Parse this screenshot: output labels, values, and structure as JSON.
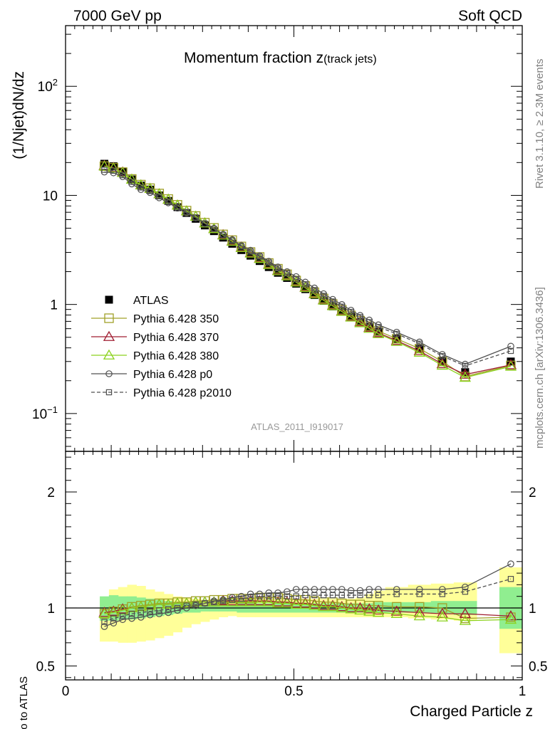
{
  "header": {
    "left": "7000 GeV pp",
    "right": "Soft QCD"
  },
  "side_labels": {
    "rivet": "Rivet 3.1.10, ≥ 2.3M events",
    "mcplots": "mcplots.cern.ch [arXiv:1306.3436]"
  },
  "chart_data": {
    "type": "scatter",
    "title_main": "Momentum fraction z",
    "title_sub": "(track jets)",
    "analysis_label": "ATLAS_2011_I919017",
    "xlabel": "Charged Particle z",
    "ylabel": "(1/Njet)dN/dz",
    "ratio_ylabel": "Ratio to ATLAS",
    "xlim": [
      0,
      1
    ],
    "ylim": [
      0.045,
      360
    ],
    "yscale": "log",
    "ratio_ylim": [
      0.38,
      2.35
    ],
    "x_ticks": [
      {
        "value": 0,
        "label": "0"
      },
      {
        "value": 0.5,
        "label": "0.5"
      },
      {
        "value": 1,
        "label": "1"
      }
    ],
    "y_ticks": [
      {
        "value": 0.1,
        "base": "10",
        "exp": "−1"
      },
      {
        "value": 1,
        "base": "1",
        "exp": ""
      },
      {
        "value": 10,
        "base": "10",
        "exp": ""
      },
      {
        "value": 100,
        "base": "10",
        "exp": "2"
      }
    ],
    "ratio_ticks": [
      {
        "value": 0.5,
        "label": "0.5"
      },
      {
        "value": 1,
        "label": "1"
      },
      {
        "value": 2,
        "label": "2"
      }
    ],
    "legend_position": "lower-left",
    "x": [
      0.085,
      0.105,
      0.125,
      0.145,
      0.165,
      0.185,
      0.205,
      0.225,
      0.245,
      0.265,
      0.285,
      0.305,
      0.325,
      0.345,
      0.365,
      0.385,
      0.405,
      0.425,
      0.445,
      0.465,
      0.485,
      0.505,
      0.525,
      0.545,
      0.565,
      0.585,
      0.605,
      0.625,
      0.645,
      0.665,
      0.685,
      0.725,
      0.775,
      0.825,
      0.875,
      0.975
    ],
    "data": {
      "name": "ATLAS",
      "color": "#000000",
      "values": [
        19.5,
        18.5,
        16.5,
        14.0,
        12.3,
        11.3,
        10.0,
        8.9,
        7.8,
        6.9,
        6.1,
        5.3,
        4.7,
        4.1,
        3.6,
        3.15,
        2.8,
        2.5,
        2.2,
        1.95,
        1.75,
        1.55,
        1.38,
        1.22,
        1.08,
        0.96,
        0.86,
        0.77,
        0.69,
        0.62,
        0.56,
        0.48,
        0.39,
        0.3,
        0.24,
        0.3
      ]
    },
    "ratio_bands": {
      "x_edges": [
        0.075,
        0.095,
        0.115,
        0.135,
        0.155,
        0.175,
        0.195,
        0.215,
        0.235,
        0.255,
        0.275,
        0.295,
        0.315,
        0.335,
        0.355,
        0.375,
        0.395,
        0.415,
        0.435,
        0.455,
        0.475,
        0.495,
        0.515,
        0.535,
        0.555,
        0.575,
        0.595,
        0.615,
        0.635,
        0.655,
        0.675,
        0.7,
        0.75,
        0.8,
        0.85,
        0.9,
        0.95,
        1.0
      ],
      "gap_after_x": 0.9,
      "gap_until_x": 0.95,
      "inner_color": "#90ee90",
      "outer_color": "#ffff99",
      "inner_low": [
        0.89,
        0.89,
        0.9,
        0.9,
        0.91,
        0.92,
        0.93,
        0.94,
        0.95,
        0.96,
        0.96,
        0.97,
        0.97,
        0.97,
        0.97,
        0.96,
        0.96,
        0.96,
        0.96,
        0.96,
        0.96,
        0.96,
        0.96,
        0.96,
        0.96,
        0.96,
        0.96,
        0.96,
        0.96,
        0.96,
        0.96,
        0.96,
        0.96,
        0.95,
        0.94,
        null,
        0.82
      ],
      "inner_high": [
        1.1,
        1.11,
        1.1,
        1.1,
        1.09,
        1.08,
        1.07,
        1.06,
        1.05,
        1.04,
        1.04,
        1.03,
        1.03,
        1.03,
        1.03,
        1.04,
        1.04,
        1.04,
        1.04,
        1.04,
        1.04,
        1.04,
        1.04,
        1.04,
        1.04,
        1.04,
        1.04,
        1.04,
        1.04,
        1.04,
        1.05,
        1.05,
        1.05,
        1.06,
        1.06,
        null,
        1.18
      ],
      "outer_low": [
        0.71,
        0.71,
        0.7,
        0.7,
        0.71,
        0.72,
        0.74,
        0.76,
        0.79,
        0.83,
        0.86,
        0.88,
        0.9,
        0.92,
        0.93,
        0.92,
        0.92,
        0.92,
        0.92,
        0.92,
        0.92,
        0.92,
        0.92,
        0.92,
        0.92,
        0.92,
        0.92,
        0.92,
        0.92,
        0.92,
        0.92,
        0.92,
        0.91,
        0.9,
        0.89,
        null,
        0.61
      ],
      "outer_high": [
        1.08,
        1.16,
        1.18,
        1.2,
        1.19,
        1.16,
        1.14,
        1.12,
        1.1,
        1.09,
        1.08,
        1.07,
        1.07,
        1.07,
        1.07,
        1.08,
        1.08,
        1.08,
        1.08,
        1.08,
        1.08,
        1.08,
        1.08,
        1.08,
        1.08,
        1.08,
        1.08,
        1.08,
        1.09,
        1.12,
        1.15,
        1.18,
        1.2,
        1.21,
        1.22,
        null,
        1.35
      ]
    },
    "series": [
      {
        "name": "Pythia 6.428 350",
        "color": "#a0a028",
        "marker": "square",
        "dashed": false,
        "ratio": [
          0.95,
          0.97,
          0.99,
          1.01,
          1.02,
          1.03,
          1.04,
          1.04,
          1.05,
          1.05,
          1.06,
          1.06,
          1.07,
          1.07,
          1.08,
          1.08,
          1.08,
          1.09,
          1.09,
          1.09,
          1.08,
          1.07,
          1.07,
          1.06,
          1.05,
          1.05,
          1.04,
          1.03,
          1.03,
          1.02,
          1.02,
          1.01,
          1.01,
          1.0,
          0.91,
          0.92
        ]
      },
      {
        "name": "Pythia 6.428 370",
        "color": "#a01e32",
        "marker": "triangle",
        "dashed": false,
        "ratio": [
          0.96,
          0.97,
          0.99,
          1.0,
          1.01,
          1.02,
          1.03,
          1.03,
          1.04,
          1.04,
          1.05,
          1.05,
          1.05,
          1.06,
          1.06,
          1.06,
          1.06,
          1.06,
          1.06,
          1.05,
          1.05,
          1.04,
          1.04,
          1.03,
          1.02,
          1.02,
          1.01,
          1.0,
          1.0,
          0.99,
          0.98,
          0.97,
          0.96,
          0.95,
          0.95,
          0.93
        ]
      },
      {
        "name": "Pythia 6.428 380",
        "color": "#8cd21e",
        "marker": "triangle",
        "dashed": false,
        "ratio": [
          0.95,
          0.96,
          0.98,
          1.0,
          1.01,
          1.02,
          1.03,
          1.03,
          1.04,
          1.04,
          1.05,
          1.05,
          1.05,
          1.05,
          1.05,
          1.05,
          1.05,
          1.05,
          1.05,
          1.04,
          1.04,
          1.03,
          1.03,
          1.02,
          1.01,
          1.01,
          1.0,
          0.99,
          0.98,
          0.97,
          0.96,
          0.95,
          0.93,
          0.92,
          0.89,
          0.9
        ]
      },
      {
        "name": "Pythia 6.428 p0",
        "color": "#505050",
        "marker": "circle",
        "dashed": false,
        "ratio": [
          0.84,
          0.87,
          0.9,
          0.91,
          0.92,
          0.94,
          0.95,
          0.96,
          0.98,
          1.0,
          1.02,
          1.04,
          1.06,
          1.07,
          1.09,
          1.1,
          1.12,
          1.12,
          1.13,
          1.13,
          1.14,
          1.16,
          1.16,
          1.16,
          1.16,
          1.16,
          1.16,
          1.15,
          1.15,
          1.16,
          1.16,
          1.16,
          1.16,
          1.16,
          1.18,
          1.38
        ]
      },
      {
        "name": "Pythia 6.428 p2010",
        "color": "#505050",
        "marker": "square-small",
        "dashed": true,
        "ratio": [
          0.88,
          0.91,
          0.93,
          0.95,
          0.96,
          0.97,
          0.98,
          0.99,
          1.0,
          1.02,
          1.03,
          1.04,
          1.05,
          1.06,
          1.07,
          1.08,
          1.09,
          1.1,
          1.1,
          1.1,
          1.1,
          1.1,
          1.11,
          1.11,
          1.11,
          1.11,
          1.11,
          1.11,
          1.11,
          1.11,
          1.11,
          1.12,
          1.12,
          1.12,
          1.14,
          1.25
        ]
      }
    ]
  }
}
